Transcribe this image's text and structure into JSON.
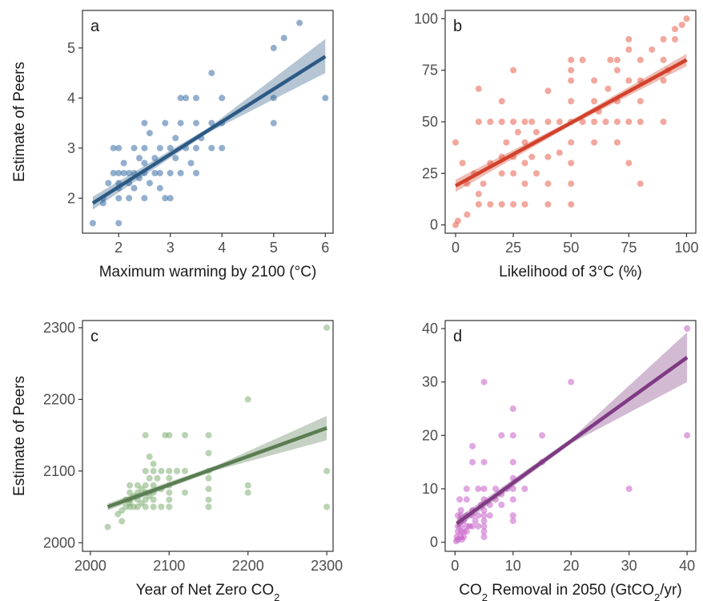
{
  "chart_data": [
    {
      "type": "scatter",
      "panel": "a",
      "xlabel": "Maximum warming by 2100 (°C)",
      "ylabel": "Estimate of Peers",
      "xlim": [
        1.3,
        6.15
      ],
      "ylim": [
        1.3,
        5.75
      ],
      "xticks": [
        2,
        3,
        4,
        5,
        6
      ],
      "yticks": [
        2,
        3,
        4,
        5
      ],
      "color": "#3a6ea5",
      "line_color": "#2c5a85",
      "grid": false,
      "points": [
        [
          1.5,
          1.5
        ],
        [
          1.7,
          2.0
        ],
        [
          1.7,
          1.9
        ],
        [
          1.8,
          2.3
        ],
        [
          1.9,
          2.5
        ],
        [
          1.9,
          3.0
        ],
        [
          2.0,
          2.0
        ],
        [
          2.0,
          2.5
        ],
        [
          2.0,
          3.0
        ],
        [
          2.0,
          1.5
        ],
        [
          2.0,
          2.3
        ],
        [
          2.0,
          2.2
        ],
        [
          2.1,
          2.5
        ],
        [
          2.1,
          2.7
        ],
        [
          2.2,
          2.5
        ],
        [
          2.2,
          2.3
        ],
        [
          2.2,
          2.0
        ],
        [
          2.3,
          2.5
        ],
        [
          2.3,
          3.0
        ],
        [
          2.3,
          2.2
        ],
        [
          2.4,
          2.4
        ],
        [
          2.4,
          2.8
        ],
        [
          2.5,
          2.0
        ],
        [
          2.5,
          2.5
        ],
        [
          2.5,
          3.0
        ],
        [
          2.5,
          3.5
        ],
        [
          2.5,
          2.7
        ],
        [
          2.6,
          2.3
        ],
        [
          2.6,
          3.3
        ],
        [
          2.7,
          2.5
        ],
        [
          2.7,
          2.8
        ],
        [
          2.8,
          3.0
        ],
        [
          2.8,
          2.5
        ],
        [
          2.8,
          2.2
        ],
        [
          2.9,
          2.0
        ],
        [
          2.9,
          3.5
        ],
        [
          3.0,
          2.5
        ],
        [
          3.0,
          3.0
        ],
        [
          3.0,
          2.0
        ],
        [
          3.1,
          3.2
        ],
        [
          3.1,
          2.8
        ],
        [
          3.2,
          4.0
        ],
        [
          3.2,
          3.5
        ],
        [
          3.2,
          2.5
        ],
        [
          3.3,
          3.0
        ],
        [
          3.3,
          4.0
        ],
        [
          3.4,
          2.7
        ],
        [
          3.5,
          3.5
        ],
        [
          3.5,
          3.0
        ],
        [
          3.5,
          2.5
        ],
        [
          3.5,
          4.0
        ],
        [
          3.6,
          3.2
        ],
        [
          3.8,
          3.0
        ],
        [
          3.8,
          3.5
        ],
        [
          3.8,
          4.5
        ],
        [
          4.0,
          4.0
        ],
        [
          4.0,
          3.0
        ],
        [
          4.0,
          3.5
        ],
        [
          5.0,
          5.0
        ],
        [
          5.0,
          4.0
        ],
        [
          5.0,
          3.5
        ],
        [
          5.2,
          5.2
        ],
        [
          5.5,
          5.5
        ],
        [
          6.0,
          4.0
        ]
      ],
      "fit": {
        "x": [
          1.5,
          6.0
        ],
        "y": [
          1.9,
          4.83
        ],
        "ci_low": [
          1.77,
          4.5
        ],
        "ci_high": [
          2.03,
          5.18
        ]
      }
    },
    {
      "type": "scatter",
      "panel": "b",
      "xlabel": "Likelihood of 3°C (%)",
      "ylabel": "",
      "xlim": [
        -4.5,
        104
      ],
      "ylim": [
        -4,
        104
      ],
      "xticks": [
        0,
        25,
        50,
        75,
        100
      ],
      "yticks": [
        0,
        25,
        50,
        75,
        100
      ],
      "color": "#e8604c",
      "line_color": "#d2412c",
      "grid": false,
      "points": [
        [
          0,
          40
        ],
        [
          0,
          0
        ],
        [
          1,
          2
        ],
        [
          3,
          30
        ],
        [
          5,
          5
        ],
        [
          5,
          20
        ],
        [
          8,
          25
        ],
        [
          10,
          10
        ],
        [
          10,
          15
        ],
        [
          10,
          50
        ],
        [
          10,
          66
        ],
        [
          12,
          20
        ],
        [
          15,
          10
        ],
        [
          15,
          30
        ],
        [
          15,
          50
        ],
        [
          20,
          10
        ],
        [
          20,
          25
        ],
        [
          20,
          33
        ],
        [
          20,
          50
        ],
        [
          20,
          60
        ],
        [
          22,
          40
        ],
        [
          25,
          10
        ],
        [
          25,
          25
        ],
        [
          25,
          33
        ],
        [
          25,
          50
        ],
        [
          25,
          75
        ],
        [
          27,
          45
        ],
        [
          30,
          10
        ],
        [
          30,
          20
        ],
        [
          30,
          30
        ],
        [
          30,
          40
        ],
        [
          30,
          50
        ],
        [
          33,
          33
        ],
        [
          33,
          50
        ],
        [
          35,
          25
        ],
        [
          35,
          45
        ],
        [
          40,
          10
        ],
        [
          40,
          20
        ],
        [
          40,
          33
        ],
        [
          40,
          50
        ],
        [
          40,
          65
        ],
        [
          45,
          35
        ],
        [
          45,
          50
        ],
        [
          50,
          10
        ],
        [
          50,
          20
        ],
        [
          50,
          30
        ],
        [
          50,
          40
        ],
        [
          50,
          50
        ],
        [
          50,
          60
        ],
        [
          50,
          70
        ],
        [
          50,
          75
        ],
        [
          50,
          80
        ],
        [
          55,
          50
        ],
        [
          55,
          80
        ],
        [
          60,
          40
        ],
        [
          60,
          50
        ],
        [
          60,
          60
        ],
        [
          60,
          70
        ],
        [
          62,
          55
        ],
        [
          65,
          50
        ],
        [
          66,
          66
        ],
        [
          67,
          80
        ],
        [
          70,
          40
        ],
        [
          70,
          50
        ],
        [
          70,
          60
        ],
        [
          70,
          75
        ],
        [
          70,
          80
        ],
        [
          75,
          30
        ],
        [
          75,
          50
        ],
        [
          75,
          70
        ],
        [
          75,
          85
        ],
        [
          75,
          90
        ],
        [
          80,
          20
        ],
        [
          80,
          50
        ],
        [
          80,
          60
        ],
        [
          80,
          70
        ],
        [
          80,
          80
        ],
        [
          85,
          85
        ],
        [
          90,
          50
        ],
        [
          90,
          70
        ],
        [
          90,
          80
        ],
        [
          90,
          90
        ],
        [
          92,
          75
        ],
        [
          95,
          90
        ],
        [
          95,
          95
        ],
        [
          98,
          97
        ],
        [
          100,
          100
        ]
      ],
      "fit": {
        "x": [
          0,
          100
        ],
        "y": [
          19,
          80
        ],
        "ci_low": [
          16,
          77
        ],
        "ci_high": [
          22,
          83
        ]
      }
    },
    {
      "type": "scatter",
      "panel": "c",
      "xlabel": "Year of Net Zero CO₂",
      "ylabel": "Estimate of Peers",
      "xlim": [
        1990,
        2308
      ],
      "ylim": [
        1988,
        2310
      ],
      "xticks": [
        2000,
        2100,
        2200,
        2300
      ],
      "yticks": [
        2000,
        2100,
        2200,
        2300
      ],
      "color": "#7fae74",
      "line_color": "#5a7d52",
      "grid": false,
      "points": [
        [
          2022,
          2022
        ],
        [
          2035,
          2040
        ],
        [
          2040,
          2030
        ],
        [
          2040,
          2045
        ],
        [
          2045,
          2050
        ],
        [
          2045,
          2060
        ],
        [
          2050,
          2050
        ],
        [
          2050,
          2055
        ],
        [
          2050,
          2060
        ],
        [
          2050,
          2070
        ],
        [
          2050,
          2080
        ],
        [
          2055,
          2050
        ],
        [
          2055,
          2065
        ],
        [
          2060,
          2050
        ],
        [
          2060,
          2060
        ],
        [
          2060,
          2070
        ],
        [
          2060,
          2080
        ],
        [
          2065,
          2055
        ],
        [
          2065,
          2075
        ],
        [
          2070,
          2050
        ],
        [
          2070,
          2060
        ],
        [
          2070,
          2070
        ],
        [
          2070,
          2080
        ],
        [
          2070,
          2100
        ],
        [
          2070,
          2150
        ],
        [
          2075,
          2065
        ],
        [
          2075,
          2090
        ],
        [
          2075,
          2120
        ],
        [
          2080,
          2050
        ],
        [
          2080,
          2060
        ],
        [
          2080,
          2070
        ],
        [
          2080,
          2080
        ],
        [
          2080,
          2100
        ],
        [
          2080,
          2110
        ],
        [
          2085,
          2090
        ],
        [
          2090,
          2050
        ],
        [
          2090,
          2075
        ],
        [
          2090,
          2100
        ],
        [
          2095,
          2150
        ],
        [
          2100,
          2050
        ],
        [
          2100,
          2060
        ],
        [
          2100,
          2070
        ],
        [
          2100,
          2080
        ],
        [
          2100,
          2090
        ],
        [
          2100,
          2100
        ],
        [
          2100,
          2150
        ],
        [
          2110,
          2100
        ],
        [
          2120,
          2070
        ],
        [
          2120,
          2100
        ],
        [
          2120,
          2150
        ],
        [
          2150,
          2050
        ],
        [
          2150,
          2060
        ],
        [
          2150,
          2075
        ],
        [
          2150,
          2090
        ],
        [
          2150,
          2100
        ],
        [
          2150,
          2125
        ],
        [
          2150,
          2150
        ],
        [
          2200,
          2070
        ],
        [
          2200,
          2080
        ],
        [
          2200,
          2200
        ],
        [
          2300,
          2050
        ],
        [
          2300,
          2100
        ],
        [
          2300,
          2300
        ]
      ],
      "fit": {
        "x": [
          2022,
          2300
        ],
        "y": [
          2050,
          2160
        ],
        "ci_low": [
          2045,
          2143
        ],
        "ci_high": [
          2055,
          2177
        ]
      }
    },
    {
      "type": "scatter",
      "panel": "d",
      "xlabel": "CO₂ Removal in 2050 (GtCO₂/yr)",
      "ylabel": "",
      "xlim": [
        -1.7,
        41.5
      ],
      "ylim": [
        -1.7,
        41.5
      ],
      "xticks": [
        0,
        10,
        20,
        30,
        40
      ],
      "yticks": [
        0,
        10,
        20,
        30,
        40
      ],
      "color": "#c65ec9",
      "line_color": "#7e3a82",
      "grid": false,
      "points": [
        [
          0.2,
          0.2
        ],
        [
          0.3,
          1
        ],
        [
          0.5,
          2
        ],
        [
          0.5,
          0.5
        ],
        [
          0.5,
          3
        ],
        [
          0.5,
          5
        ],
        [
          0.8,
          8
        ],
        [
          1,
          1
        ],
        [
          1,
          2
        ],
        [
          1,
          3
        ],
        [
          1,
          4
        ],
        [
          1,
          5
        ],
        [
          1,
          6
        ],
        [
          1.2,
          0.5
        ],
        [
          1.5,
          1
        ],
        [
          1.5,
          2
        ],
        [
          1.5,
          4
        ],
        [
          2,
          2
        ],
        [
          2,
          3
        ],
        [
          2,
          5
        ],
        [
          2,
          8
        ],
        [
          2,
          10
        ],
        [
          2.5,
          3
        ],
        [
          3,
          3
        ],
        [
          3,
          5
        ],
        [
          3,
          6
        ],
        [
          3,
          15
        ],
        [
          3,
          18
        ],
        [
          3.5,
          4
        ],
        [
          4,
          3
        ],
        [
          4,
          5
        ],
        [
          4,
          10
        ],
        [
          4.5,
          7
        ],
        [
          5,
          1
        ],
        [
          5,
          2
        ],
        [
          5,
          3
        ],
        [
          5,
          4
        ],
        [
          5,
          5
        ],
        [
          5,
          6
        ],
        [
          5,
          8
        ],
        [
          5,
          10
        ],
        [
          5,
          15
        ],
        [
          5,
          30
        ],
        [
          6,
          5
        ],
        [
          6,
          7
        ],
        [
          7,
          8
        ],
        [
          7,
          10
        ],
        [
          8,
          7
        ],
        [
          8,
          9
        ],
        [
          8,
          20
        ],
        [
          9,
          10
        ],
        [
          10,
          4
        ],
        [
          10,
          5
        ],
        [
          10,
          8
        ],
        [
          10,
          10
        ],
        [
          10,
          12
        ],
        [
          10,
          15
        ],
        [
          10,
          20
        ],
        [
          10,
          25
        ],
        [
          12,
          10
        ],
        [
          15,
          15
        ],
        [
          15,
          20
        ],
        [
          20,
          30
        ],
        [
          30,
          10
        ],
        [
          40,
          20
        ],
        [
          40,
          40
        ]
      ],
      "fit": {
        "x": [
          0.3,
          40
        ],
        "y": [
          3.5,
          34.6
        ],
        "ci_low": [
          2.6,
          30
        ],
        "ci_high": [
          4.4,
          39.3
        ]
      }
    }
  ]
}
